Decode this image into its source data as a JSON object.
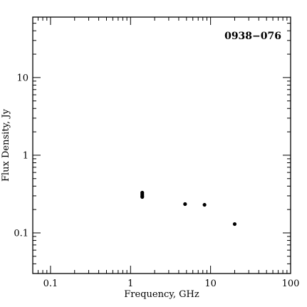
{
  "chart_data": {
    "type": "scatter",
    "title": "0938−076",
    "xlabel": "Frequency, GHz",
    "ylabel": "Flux Density, Jy",
    "x_scale": "log",
    "y_scale": "log",
    "xlim": [
      0.06,
      100
    ],
    "ylim": [
      0.03,
      60
    ],
    "x_major_ticks": [
      0.1,
      1,
      10,
      100
    ],
    "x_tick_labels": [
      "0.1",
      "1",
      "10",
      "100"
    ],
    "y_major_ticks": [
      0.1,
      1,
      10
    ],
    "y_tick_labels": [
      "0.1",
      "1",
      "10"
    ],
    "grid": false,
    "marker_color": "#000000",
    "points": [
      {
        "x": 1.4,
        "y": 0.33
      },
      {
        "x": 1.4,
        "y": 0.315
      },
      {
        "x": 1.4,
        "y": 0.3
      },
      {
        "x": 1.4,
        "y": 0.29
      },
      {
        "x": 4.8,
        "y": 0.235
      },
      {
        "x": 8.4,
        "y": 0.23
      },
      {
        "x": 20,
        "y": 0.13
      }
    ]
  }
}
